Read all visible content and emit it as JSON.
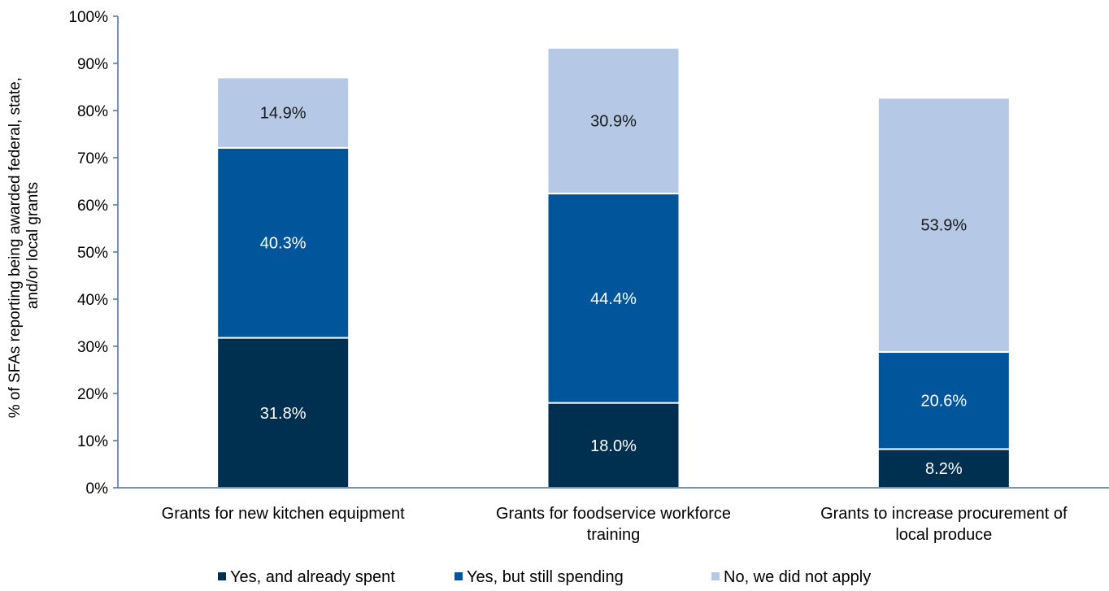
{
  "chart_data": {
    "type": "bar",
    "stacked": true,
    "ylabel": [
      "% of SFAs reporting being awarded federal, state,",
      "and/or local grants"
    ],
    "ylim": [
      0,
      100
    ],
    "yticks": [
      "0%",
      "10%",
      "20%",
      "30%",
      "40%",
      "50%",
      "60%",
      "70%",
      "80%",
      "90%",
      "100%"
    ],
    "grid": false,
    "legend_position": "bottom",
    "categories": [
      [
        "Grants for new kitchen equipment"
      ],
      [
        "Grants for foodservice workforce",
        "training"
      ],
      [
        "Grants to increase procurement of",
        "local produce"
      ]
    ],
    "series": [
      {
        "name": "Yes, and already spent",
        "color": "#00304f",
        "label_color": "#ffffff",
        "values": [
          31.8,
          18.0,
          8.2
        ],
        "labels": [
          "31.8%",
          "18.0%",
          "8.2%"
        ]
      },
      {
        "name": "Yes, but still spending",
        "color": "#00559b",
        "label_color": "#ffffff",
        "values": [
          40.3,
          44.4,
          20.6
        ],
        "labels": [
          "40.3%",
          "44.4%",
          "20.6%"
        ]
      },
      {
        "name": "No, we did not apply",
        "color": "#b5c8e5",
        "label_color": "#1a1a1a",
        "values": [
          14.9,
          30.9,
          53.9
        ],
        "labels": [
          "14.9%",
          "30.9%",
          "53.9%"
        ]
      }
    ]
  }
}
